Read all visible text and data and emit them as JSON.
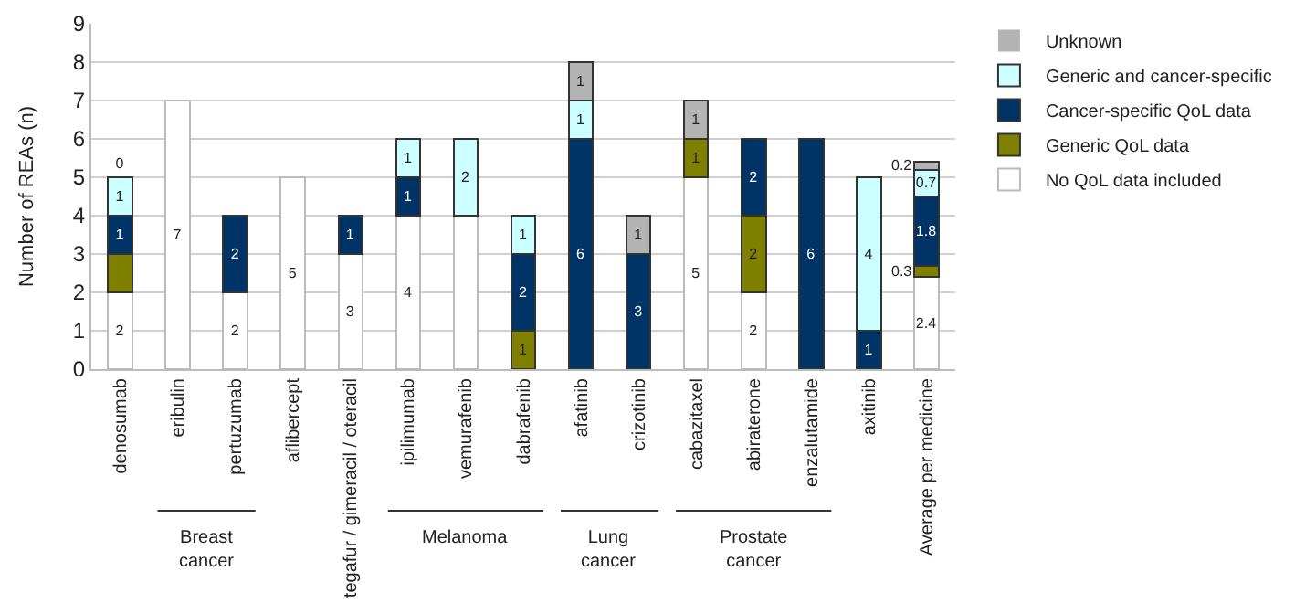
{
  "chart_data": {
    "type": "bar",
    "stacked": true,
    "ylabel": "Number of REAs (n)",
    "categories": [
      "denosumab",
      "eribulin",
      "pertuzumab",
      "aflibercept",
      "tegafur / gimeracil / oteracil",
      "ipilimumab",
      "vemurafenib",
      "dabrafenib",
      "afatinib",
      "crizotinib",
      "cabazitaxel",
      "abiraterone",
      "enzalutamide",
      "axitinib",
      "Average per medicine"
    ],
    "series": [
      {
        "name": "No QoL data included",
        "color": "#ffffff",
        "values": [
          2,
          7,
          2,
          5,
          3,
          4,
          4,
          0,
          0,
          0,
          5,
          2,
          0,
          0,
          2.4
        ],
        "value_labels": [
          "2",
          "7",
          "2",
          "5",
          "3",
          "4",
          null,
          null,
          null,
          null,
          "5",
          "2",
          null,
          null,
          "2.4"
        ]
      },
      {
        "name": "Generic QoL data",
        "color": "#808000",
        "values": [
          1,
          0,
          0,
          0,
          0,
          0,
          0,
          1,
          0,
          0,
          1,
          2,
          0,
          0,
          0.3
        ],
        "value_labels": [
          null,
          null,
          null,
          null,
          null,
          null,
          null,
          "1",
          null,
          null,
          "1",
          "2",
          null,
          null,
          "0.3"
        ]
      },
      {
        "name": "Cancer-specific QoL data",
        "color": "#003366",
        "values": [
          1,
          0,
          2,
          0,
          1,
          1,
          0,
          2,
          6,
          3,
          0,
          2,
          6,
          1,
          1.8
        ],
        "value_labels": [
          "1",
          null,
          "2",
          null,
          "1",
          "1",
          null,
          "2",
          "6",
          "3",
          null,
          "2",
          "6",
          "1",
          "1.8"
        ]
      },
      {
        "name": "Generic and cancer-specific",
        "color": "#ccffff",
        "values": [
          1,
          0,
          0,
          0,
          0,
          1,
          2,
          1,
          1,
          0,
          0,
          0,
          0,
          4,
          0.7
        ],
        "value_labels": [
          "1",
          null,
          null,
          null,
          null,
          "1",
          "2",
          "1",
          "1",
          null,
          null,
          null,
          null,
          "4",
          "0.7"
        ]
      },
      {
        "name": "Unknown",
        "color": "#b3b3b3",
        "values": [
          0,
          0,
          0,
          0,
          0,
          0,
          0,
          0,
          1,
          1,
          1,
          0,
          0,
          0,
          0.2
        ],
        "value_labels": [
          "0",
          null,
          null,
          null,
          null,
          null,
          null,
          null,
          "1",
          "1",
          "1",
          null,
          null,
          null,
          "0.2"
        ]
      }
    ],
    "ylim": [
      0,
      9
    ],
    "yticks": [
      0,
      1,
      2,
      3,
      4,
      5,
      6,
      7,
      8,
      9
    ],
    "grid": "y",
    "legend": "right",
    "annotations": [
      "Breast cancer",
      "Melanoma",
      "Lung cancer",
      "Prostate cancer"
    ]
  }
}
